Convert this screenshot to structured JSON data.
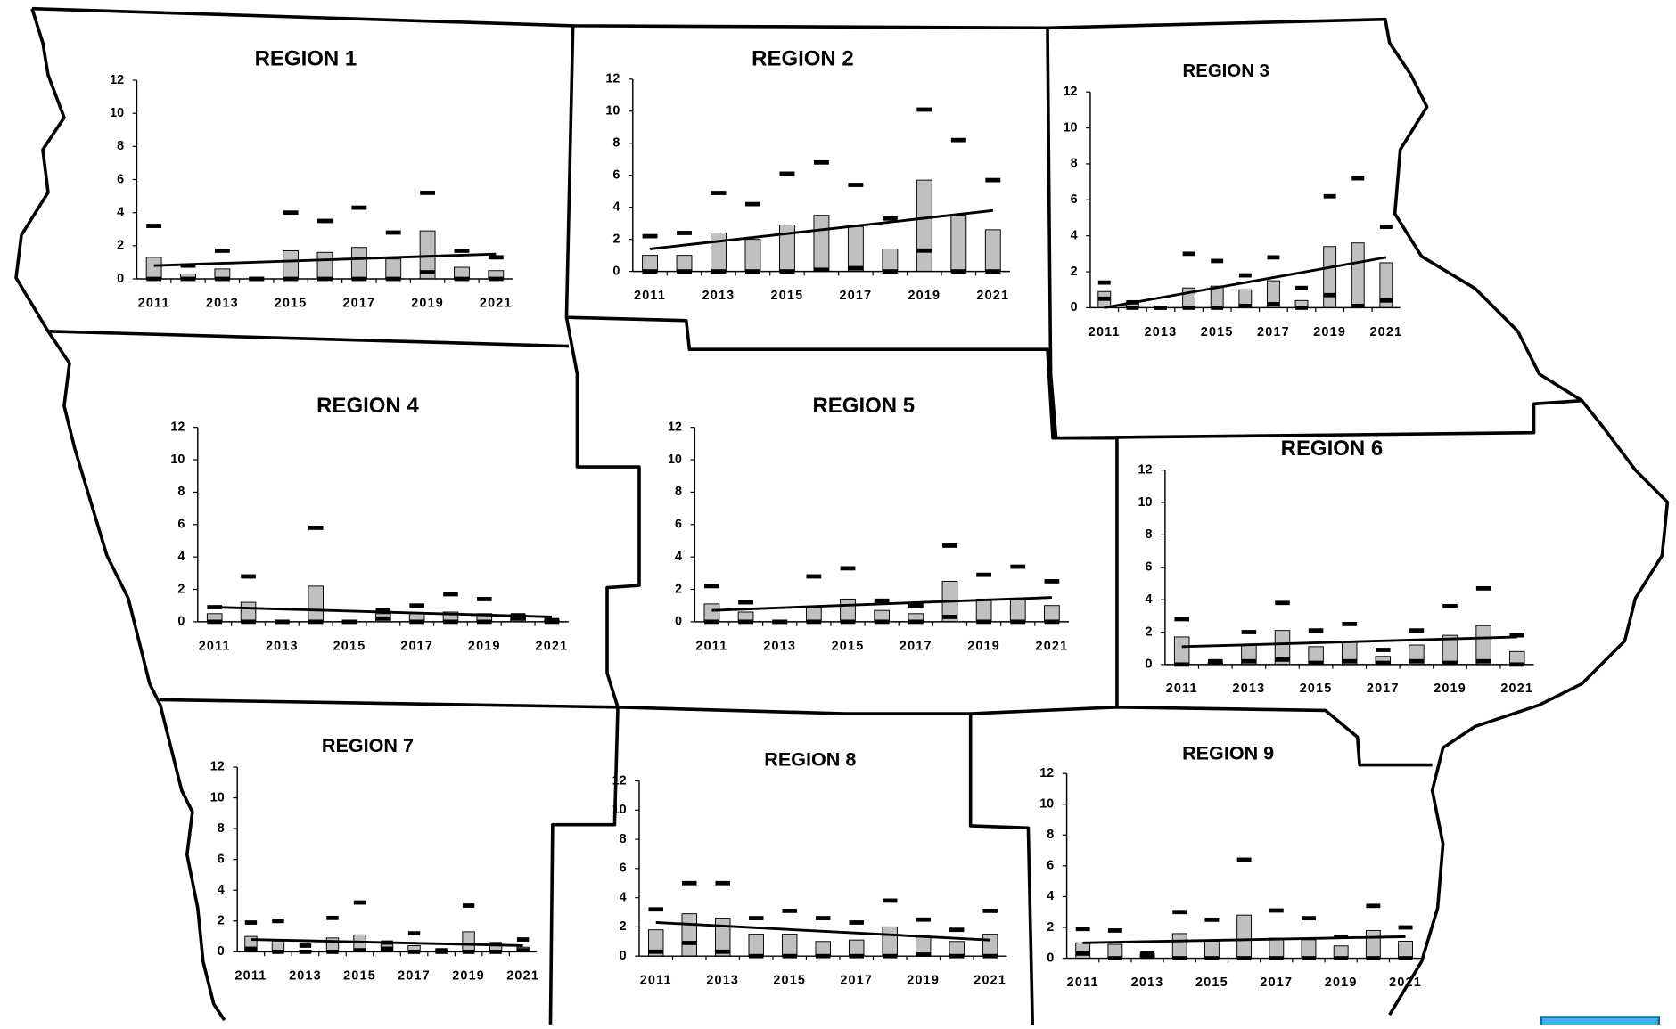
{
  "chart_data": [
    {
      "type": "bar",
      "title": "REGION 1",
      "x": [
        2011,
        2012,
        2013,
        2014,
        2015,
        2016,
        2017,
        2018,
        2019,
        2020,
        2021
      ],
      "xlim": [
        2010.5,
        2021.5
      ],
      "xticks": [
        2011,
        2013,
        2015,
        2017,
        2019,
        2021
      ],
      "ylim": [
        0,
        12
      ],
      "yticks": [
        0,
        2,
        4,
        6,
        8,
        10,
        12
      ],
      "series": [
        {
          "style": "bar",
          "color": "#c0c0c0",
          "values": [
            1.3,
            0.3,
            0.6,
            0,
            1.7,
            1.6,
            1.9,
            1.2,
            2.9,
            0.7,
            0.5
          ]
        },
        {
          "style": "dash",
          "color": "#000000",
          "values": [
            3.2,
            0.8,
            1.7,
            0,
            4.0,
            3.5,
            4.3,
            2.8,
            5.2,
            1.7,
            1.3
          ]
        },
        {
          "style": "dash",
          "color": "#000000",
          "values": [
            0,
            0,
            0,
            0,
            0,
            0,
            0,
            0,
            0.4,
            0,
            0
          ]
        }
      ],
      "trend": {
        "x": [
          2011,
          2021
        ],
        "values": [
          0.8,
          1.5
        ]
      }
    },
    {
      "type": "bar",
      "title": "REGION 2",
      "x": [
        2011,
        2012,
        2013,
        2014,
        2015,
        2016,
        2017,
        2018,
        2019,
        2020,
        2021
      ],
      "xlim": [
        2010.5,
        2021.5
      ],
      "xticks": [
        2011,
        2013,
        2015,
        2017,
        2019,
        2021
      ],
      "ylim": [
        0,
        12
      ],
      "yticks": [
        0,
        2,
        4,
        6,
        8,
        10,
        12
      ],
      "series": [
        {
          "style": "bar",
          "color": "#c0c0c0",
          "values": [
            1.0,
            1.0,
            2.4,
            2.0,
            2.9,
            3.5,
            2.8,
            1.4,
            5.7,
            3.5,
            2.6
          ]
        },
        {
          "style": "dash",
          "color": "#000000",
          "values": [
            2.2,
            2.4,
            4.9,
            4.2,
            6.1,
            6.8,
            5.4,
            3.3,
            10.1,
            8.2,
            5.7
          ]
        },
        {
          "style": "dash",
          "color": "#000000",
          "values": [
            0,
            0,
            0,
            0,
            0,
            0.1,
            0.2,
            0,
            1.3,
            0,
            0
          ]
        }
      ],
      "trend": {
        "x": [
          2011,
          2021
        ],
        "values": [
          1.4,
          3.8
        ]
      }
    },
    {
      "type": "bar",
      "title": "REGION 3",
      "x": [
        2011,
        2012,
        2013,
        2014,
        2015,
        2016,
        2017,
        2018,
        2019,
        2020,
        2021
      ],
      "xlim": [
        2010.5,
        2021.5
      ],
      "xticks": [
        2011,
        2013,
        2015,
        2017,
        2019,
        2021
      ],
      "ylim": [
        0,
        12
      ],
      "yticks": [
        0,
        2,
        4,
        6,
        8,
        10,
        12
      ],
      "series": [
        {
          "style": "bar",
          "color": "#c0c0c0",
          "values": [
            0.9,
            0.3,
            0,
            1.1,
            1.2,
            1.0,
            1.5,
            0.4,
            3.4,
            3.6,
            2.5
          ]
        },
        {
          "style": "dash",
          "color": "#000000",
          "values": [
            1.4,
            0.3,
            0,
            3.0,
            2.6,
            1.8,
            2.8,
            1.1,
            6.2,
            7.2,
            4.5
          ]
        },
        {
          "style": "dash",
          "color": "#000000",
          "values": [
            0.5,
            0,
            0,
            0,
            0,
            0.1,
            0.2,
            0,
            0.7,
            0.1,
            0.4
          ]
        }
      ],
      "trend": {
        "x": [
          2011,
          2021
        ],
        "values": [
          0,
          2.8
        ]
      }
    },
    {
      "type": "bar",
      "title": "REGION 4",
      "x": [
        2011,
        2012,
        2013,
        2014,
        2015,
        2016,
        2017,
        2018,
        2019,
        2020,
        2021
      ],
      "xlim": [
        2010.5,
        2021.5
      ],
      "xticks": [
        2011,
        2013,
        2015,
        2017,
        2019,
        2021
      ],
      "ylim": [
        0,
        12
      ],
      "yticks": [
        0,
        2,
        4,
        6,
        8,
        10,
        12
      ],
      "series": [
        {
          "style": "bar",
          "color": "#c0c0c0",
          "values": [
            0.5,
            1.2,
            0,
            2.2,
            0,
            0.5,
            0.5,
            0.6,
            0.5,
            0.3,
            0.1
          ]
        },
        {
          "style": "dash",
          "color": "#000000",
          "values": [
            0.9,
            2.8,
            0,
            5.8,
            0,
            0.7,
            1.0,
            1.7,
            1.4,
            0.4,
            0.1
          ]
        },
        {
          "style": "dash",
          "color": "#000000",
          "values": [
            0,
            0,
            0,
            0,
            0,
            0.2,
            0,
            0,
            0,
            0.2,
            0
          ]
        }
      ],
      "trend": {
        "x": [
          2011,
          2021
        ],
        "values": [
          0.9,
          0.3
        ]
      }
    },
    {
      "type": "bar",
      "title": "REGION 5",
      "x": [
        2011,
        2012,
        2013,
        2014,
        2015,
        2016,
        2017,
        2018,
        2019,
        2020,
        2021
      ],
      "xlim": [
        2010.5,
        2021.5
      ],
      "xticks": [
        2011,
        2013,
        2015,
        2017,
        2019,
        2021
      ],
      "ylim": [
        0,
        12
      ],
      "yticks": [
        0,
        2,
        4,
        6,
        8,
        10,
        12
      ],
      "series": [
        {
          "style": "bar",
          "color": "#c0c0c0",
          "values": [
            1.1,
            0.6,
            0,
            0.9,
            1.4,
            0.7,
            0.5,
            2.5,
            1.4,
            1.4,
            1.0
          ]
        },
        {
          "style": "dash",
          "color": "#000000",
          "values": [
            2.2,
            1.2,
            0,
            2.8,
            3.3,
            1.3,
            1.0,
            4.7,
            2.9,
            3.4,
            2.5
          ]
        },
        {
          "style": "dash",
          "color": "#000000",
          "values": [
            0,
            0,
            0,
            0,
            0,
            0,
            0,
            0.3,
            0,
            0,
            0
          ]
        }
      ],
      "trend": {
        "x": [
          2011,
          2021
        ],
        "values": [
          0.7,
          1.5
        ]
      }
    },
    {
      "type": "bar",
      "title": "REGION 6",
      "x": [
        2011,
        2012,
        2013,
        2014,
        2015,
        2016,
        2017,
        2018,
        2019,
        2020,
        2021
      ],
      "xlim": [
        2010.5,
        2021.5
      ],
      "xticks": [
        2011,
        2013,
        2015,
        2017,
        2019,
        2021
      ],
      "ylim": [
        0,
        12
      ],
      "yticks": [
        0,
        2,
        4,
        6,
        8,
        10,
        12
      ],
      "series": [
        {
          "style": "bar",
          "color": "#c0c0c0",
          "values": [
            1.7,
            0.1,
            1.2,
            2.1,
            1.1,
            1.4,
            0.5,
            1.2,
            1.8,
            2.4,
            0.8
          ]
        },
        {
          "style": "dash",
          "color": "#000000",
          "values": [
            2.8,
            0.2,
            2.0,
            3.8,
            2.1,
            2.5,
            0.9,
            2.1,
            3.6,
            4.7,
            1.8
          ]
        },
        {
          "style": "dash",
          "color": "#000000",
          "values": [
            0,
            0.1,
            0.2,
            0.3,
            0.1,
            0.2,
            0.1,
            0.2,
            0.1,
            0.2,
            0
          ]
        }
      ],
      "trend": {
        "x": [
          2011,
          2021
        ],
        "values": [
          1.1,
          1.7
        ]
      }
    },
    {
      "type": "bar",
      "title": "REGION 7",
      "x": [
        2011,
        2012,
        2013,
        2014,
        2015,
        2016,
        2017,
        2018,
        2019,
        2020,
        2021
      ],
      "xlim": [
        2010.5,
        2021.5
      ],
      "xticks": [
        2011,
        2013,
        2015,
        2017,
        2019,
        2021
      ],
      "ylim": [
        0,
        12
      ],
      "yticks": [
        0,
        2,
        4,
        6,
        8,
        10,
        12
      ],
      "series": [
        {
          "style": "bar",
          "color": "#c0c0c0",
          "values": [
            1.0,
            0.7,
            0.1,
            0.9,
            1.1,
            0.5,
            0.4,
            0.1,
            1.3,
            0.5,
            0.3
          ]
        },
        {
          "style": "dash",
          "color": "#000000",
          "values": [
            1.9,
            2.0,
            0.4,
            2.2,
            3.2,
            0.6,
            1.2,
            0.1,
            3.0,
            0.5,
            0.8
          ]
        },
        {
          "style": "dash",
          "color": "#000000",
          "values": [
            0.2,
            0,
            0,
            0,
            0.1,
            0.2,
            0,
            0,
            0,
            0,
            0.1
          ]
        }
      ],
      "trend": {
        "x": [
          2011,
          2021
        ],
        "values": [
          0.8,
          0.4
        ]
      }
    },
    {
      "type": "bar",
      "title": "REGION 8",
      "x": [
        2011,
        2012,
        2013,
        2014,
        2015,
        2016,
        2017,
        2018,
        2019,
        2020,
        2021
      ],
      "xlim": [
        2010.5,
        2021.5
      ],
      "xticks": [
        2011,
        2013,
        2015,
        2017,
        2019,
        2021
      ],
      "ylim": [
        0,
        12
      ],
      "yticks": [
        0,
        2,
        4,
        6,
        8,
        10,
        12
      ],
      "series": [
        {
          "style": "bar",
          "color": "#c0c0c0",
          "values": [
            1.8,
            2.9,
            2.6,
            1.5,
            1.5,
            1.0,
            1.1,
            2.0,
            1.3,
            1.0,
            1.5
          ]
        },
        {
          "style": "dash",
          "color": "#000000",
          "values": [
            3.2,
            5.0,
            5.0,
            2.6,
            3.1,
            2.6,
            2.3,
            3.8,
            2.5,
            1.8,
            3.1
          ]
        },
        {
          "style": "dash",
          "color": "#000000",
          "values": [
            0.3,
            0.9,
            0.3,
            0,
            0,
            0,
            0,
            0,
            0.1,
            0,
            0
          ]
        }
      ],
      "trend": {
        "x": [
          2011,
          2021
        ],
        "values": [
          2.3,
          1.1
        ]
      }
    },
    {
      "type": "bar",
      "title": "REGION 9",
      "x": [
        2011,
        2012,
        2013,
        2014,
        2015,
        2016,
        2017,
        2018,
        2019,
        2020,
        2021
      ],
      "xlim": [
        2010.5,
        2021.5
      ],
      "xticks": [
        2011,
        2013,
        2015,
        2017,
        2019,
        2021
      ],
      "ylim": [
        0,
        12
      ],
      "yticks": [
        0,
        2,
        4,
        6,
        8,
        10,
        12
      ],
      "series": [
        {
          "style": "bar",
          "color": "#c0c0c0",
          "values": [
            1.0,
            0.9,
            0.3,
            1.6,
            1.1,
            2.8,
            1.3,
            1.2,
            0.8,
            1.8,
            1.1
          ]
        },
        {
          "style": "dash",
          "color": "#000000",
          "values": [
            1.9,
            1.8,
            0.3,
            3.0,
            2.5,
            6.4,
            3.1,
            2.6,
            1.4,
            3.4,
            2.0
          ]
        },
        {
          "style": "dash",
          "color": "#000000",
          "values": [
            0.3,
            0,
            0.1,
            0,
            0,
            0,
            0,
            0,
            0,
            0,
            0
          ]
        }
      ],
      "trend": {
        "x": [
          2011,
          2021
        ],
        "values": [
          1.0,
          1.4
        ]
      }
    }
  ]
}
